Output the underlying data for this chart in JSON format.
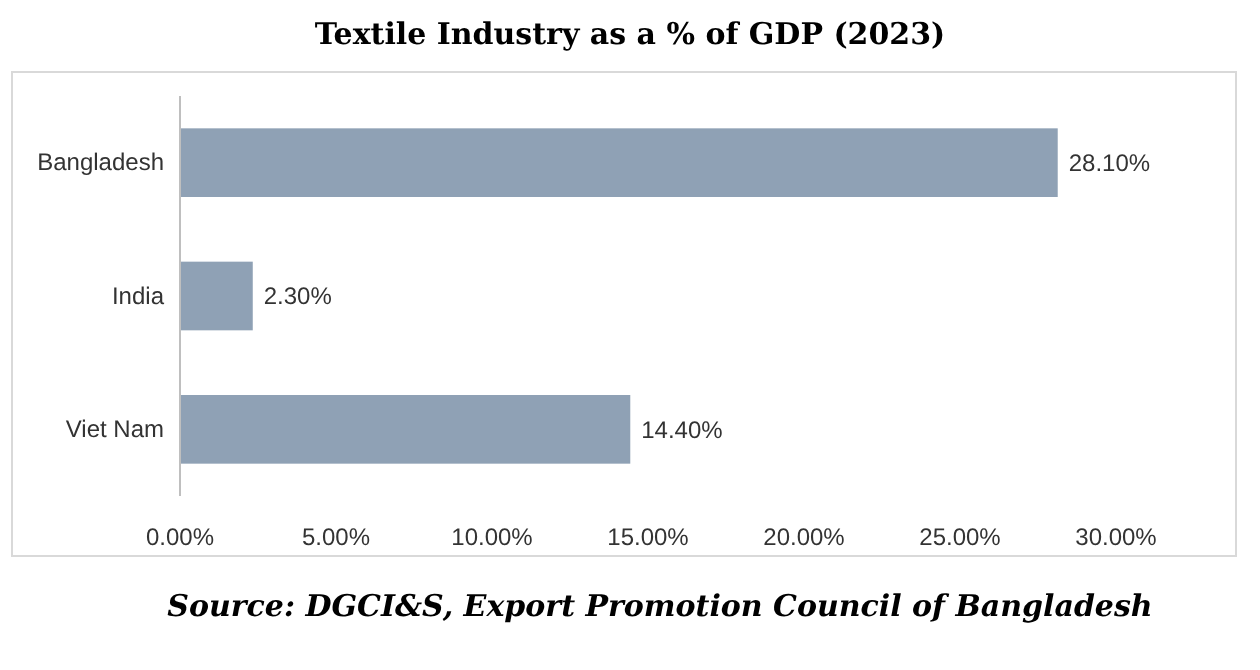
{
  "chart_data": {
    "type": "bar",
    "orientation": "horizontal",
    "title": "Textile Industry as a % of GDP (2023)",
    "categories": [
      "Bangladesh",
      "India",
      "Viet Nam"
    ],
    "values": [
      28.1,
      2.3,
      14.4
    ],
    "value_labels": [
      "28.10%",
      "2.30%",
      "14.40%"
    ],
    "color": "#8fa1b5",
    "xlim": [
      0,
      30
    ],
    "xticks": [
      {
        "value": 0,
        "label": "0.00%"
      },
      {
        "value": 5,
        "label": "5.00%"
      },
      {
        "value": 10,
        "label": "10.00%"
      },
      {
        "value": 15,
        "label": "15.00%"
      },
      {
        "value": 20,
        "label": "20.00%"
      },
      {
        "value": 25,
        "label": "25.00%"
      },
      {
        "value": 30,
        "label": "30.00%"
      }
    ],
    "grid": false,
    "annotations": [
      "Source: DGCI&S, Export Promotion Council of Bangladesh"
    ]
  }
}
